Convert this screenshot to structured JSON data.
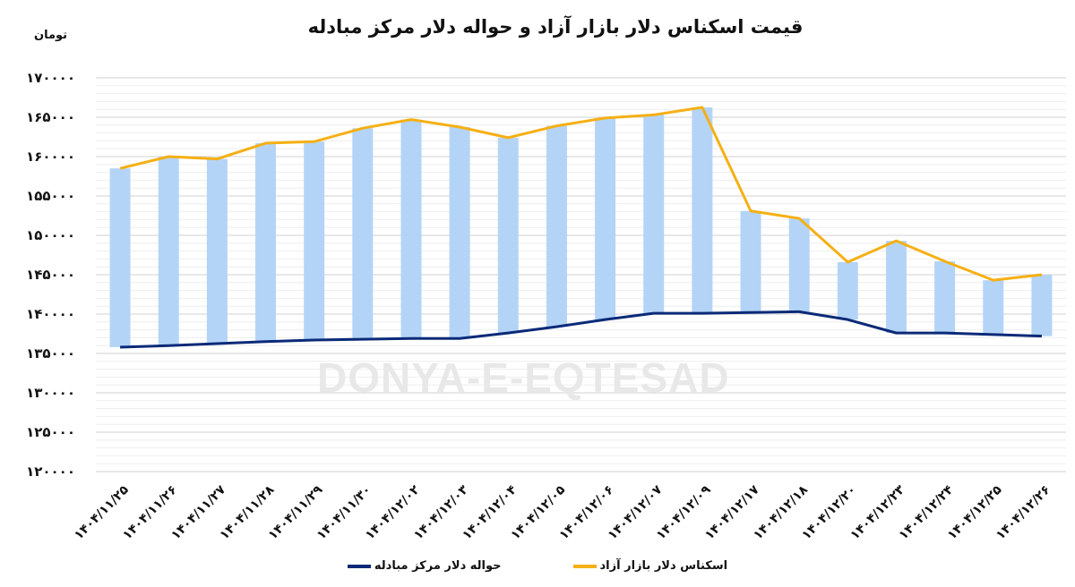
{
  "header": {
    "title": "قیمت اسکناس دلار بازار آزاد و حواله دلار مرکز مبادله",
    "unit_label": "تومان"
  },
  "watermark": "DONYA-E-EQTESAD",
  "colors": {
    "bar_fill": "#b4d4f7",
    "free_market_line": "#f5b014",
    "exchange_center_line": "#0b2a78",
    "gridline": "#d9d9d9",
    "gridline_minor": "#eeeeee"
  },
  "legend": [
    {
      "label": "اسکناس دلار بازار آزاد",
      "color": "#f5b014"
    },
    {
      "label": "حواله دلار مرکز مبادله",
      "color": "#0b2a78"
    }
  ],
  "chart_data": {
    "type": "line",
    "subtype": "line with floating range bars between the two series",
    "title": "قیمت اسکناس دلار بازار آزاد و حواله دلار مرکز مبادله",
    "xlabel": "",
    "ylabel": "تومان",
    "ylim": [
      120000,
      170000
    ],
    "yticks": [
      120000,
      125000,
      130000,
      135000,
      140000,
      145000,
      150000,
      155000,
      160000,
      165000,
      170000
    ],
    "ytick_labels": [
      "۱۲۰۰۰۰",
      "۱۲۵۰۰۰",
      "۱۳۰۰۰۰",
      "۱۳۵۰۰۰",
      "۱۴۰۰۰۰",
      "۱۴۵۰۰۰",
      "۱۵۰۰۰۰",
      "۱۵۵۰۰۰",
      "۱۶۰۰۰۰",
      "۱۶۵۰۰۰",
      "۱۷۰۰۰۰"
    ],
    "grid": true,
    "legend_position": "bottom",
    "categories": [
      "۱۴۰۴/۱۱/۲۵",
      "۱۴۰۴/۱۱/۲۶",
      "۱۴۰۴/۱۱/۲۷",
      "۱۴۰۴/۱۱/۲۸",
      "۱۴۰۴/۱۱/۲۹",
      "۱۴۰۴/۱۱/۳۰",
      "۱۴۰۴/۱۲/۰۲",
      "۱۴۰۴/۱۲/۰۳",
      "۱۴۰۴/۱۲/۰۴",
      "۱۴۰۴/۱۲/۰۵",
      "۱۴۰۴/۱۲/۰۶",
      "۱۴۰۴/۱۲/۰۷",
      "۱۴۰۴/۱۲/۰۹",
      "۱۴۰۴/۱۲/۱۷",
      "۱۴۰۴/۱۲/۱۸",
      "۱۴۰۴/۱۲/۲۰",
      "۱۴۰۴/۱۲/۲۳",
      "۱۴۰۴/۱۲/۲۴",
      "۱۴۰۴/۱۲/۲۵",
      "۱۴۰۴/۱۲/۲۶"
    ],
    "series": [
      {
        "name": "اسکناس دلار بازار آزاد",
        "color": "#f5b014",
        "values": [
          158500,
          160000,
          159700,
          161700,
          161900,
          163600,
          164700,
          163750,
          162400,
          163900,
          164900,
          165300,
          166250,
          153100,
          152150,
          146600,
          149300,
          146700,
          144300,
          145000
        ]
      },
      {
        "name": "حواله دلار مرکز مبادله",
        "color": "#0b2a78",
        "values": [
          135800,
          136000,
          136250,
          136500,
          136700,
          136800,
          136900,
          136900,
          137600,
          138400,
          139300,
          140100,
          140100,
          140200,
          140300,
          139300,
          137600,
          137600,
          137400,
          137200
        ]
      }
    ],
    "bars": {
      "description": "floating bars spanning from exchange-center value up to free-market value",
      "color": "#b4d4f7"
    }
  }
}
